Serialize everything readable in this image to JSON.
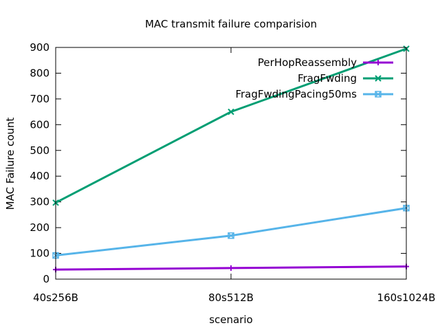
{
  "chart_data": {
    "type": "line",
    "title": "MAC transmit failure comparision",
    "xlabel": "scenario",
    "ylabel": "MAC Failure count",
    "categories": [
      "40s256B",
      "80s512B",
      "160s1024B"
    ],
    "ylim": [
      0,
      900
    ],
    "yticks": [
      0,
      100,
      200,
      300,
      400,
      500,
      600,
      700,
      800,
      900
    ],
    "grid": false,
    "legend_position": "top-right",
    "series": [
      {
        "name": "PerHopReassembly",
        "color": "#9400d3",
        "marker": "plus",
        "values": [
          37,
          43,
          49
        ]
      },
      {
        "name": "FragFwding",
        "color": "#009e73",
        "marker": "x",
        "values": [
          297,
          650,
          895
        ]
      },
      {
        "name": "FragFwdingPacing50ms",
        "color": "#56b4e9",
        "marker": "x-box",
        "values": [
          92,
          169,
          276
        ]
      }
    ]
  }
}
